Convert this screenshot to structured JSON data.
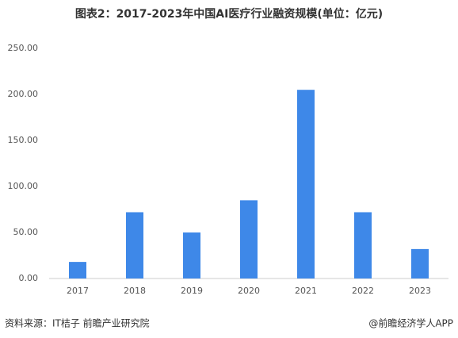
{
  "chart_data": {
    "type": "bar",
    "title": "图表2：2017-2023年中国AI医疗行业融资规模(单位：亿元)",
    "categories": [
      "2017",
      "2018",
      "2019",
      "2020",
      "2021",
      "2022",
      "2023"
    ],
    "values": [
      18,
      72,
      50,
      85,
      205,
      72,
      32
    ],
    "color": "#3e88e8",
    "ylim": [
      0,
      250
    ],
    "yticks": [
      {
        "value": 0,
        "label": "0.00"
      },
      {
        "value": 50,
        "label": "50.00"
      },
      {
        "value": 100,
        "label": "100.00"
      },
      {
        "value": 150,
        "label": "150.00"
      },
      {
        "value": 200,
        "label": "200.00"
      },
      {
        "value": 250,
        "label": "250.00"
      }
    ],
    "grid": false,
    "source": "资料来源：IT桔子 前瞻产业研究院",
    "credit": "@前瞻经济学人APP"
  }
}
